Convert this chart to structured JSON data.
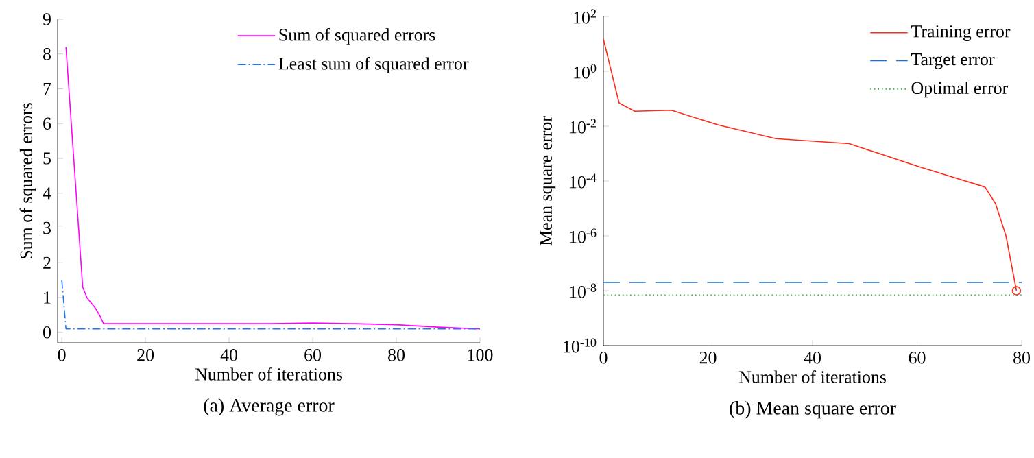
{
  "chart_data": [
    {
      "type": "line",
      "title": "(a) Average error",
      "xlabel": "Number of iterations",
      "ylabel": "Sum of squared errors",
      "xlim": [
        -1,
        100
      ],
      "ylim": [
        -0.3,
        9
      ],
      "xticks": [
        0,
        20,
        40,
        60,
        80,
        100
      ],
      "yticks": [
        0,
        1,
        2,
        3,
        4,
        5,
        6,
        7,
        8,
        9
      ],
      "legend": "top right",
      "grid": false,
      "series": [
        {
          "name": "Sum of squared errors",
          "color": "#ff00ff",
          "line_style": "solid",
          "x": [
            1,
            5,
            6,
            8,
            9,
            10,
            20,
            50,
            60,
            70,
            80,
            90,
            100
          ],
          "values": [
            8.2,
            1.3,
            1.0,
            0.7,
            0.5,
            0.25,
            0.25,
            0.25,
            0.27,
            0.25,
            0.22,
            0.15,
            0.1
          ]
        },
        {
          "name": "Least sum of squared error",
          "color": "#1a75ff",
          "line_style": "dashdot",
          "x": [
            0,
            1,
            100
          ],
          "values": [
            1.5,
            0.1,
            0.1
          ]
        }
      ]
    },
    {
      "type": "line",
      "title": "(b) Mean square error",
      "xlabel": "Number of iterations",
      "ylabel": "Mean square error",
      "log": "y",
      "xlim": [
        0,
        80
      ],
      "ylim": [
        1e-10,
        100
      ],
      "xticks": [
        0,
        20,
        40,
        60,
        80
      ],
      "yticks": [
        {
          "value": 1e-10,
          "label": "10$^{-10}$"
        },
        {
          "value": 1e-08,
          "label": "10$^{-8}$"
        },
        {
          "value": 1e-06,
          "label": "10$^{-6}$"
        },
        {
          "value": 0.0001,
          "label": "10$^{-4}$"
        },
        {
          "value": 0.01,
          "label": "10$^{-2}$"
        },
        {
          "value": 1,
          "label": "10$^{0}$"
        },
        {
          "value": 100,
          "label": "10$^{2}$"
        }
      ],
      "legend": "top right",
      "grid": false,
      "series": [
        {
          "name": "Training error",
          "color": "#ff2a1a",
          "line_style": "solid",
          "x": [
            0,
            3,
            6,
            13,
            22,
            33,
            47,
            60,
            73,
            75,
            77,
            79
          ],
          "values": [
            15,
            0.07,
            0.035,
            0.038,
            0.011,
            0.0035,
            0.0023,
            0.00035,
            6e-05,
            1.5e-05,
            1e-06,
            1e-08
          ]
        },
        {
          "name": "Target error",
          "color": "#1a6fd0",
          "line_style": "dashed",
          "x": [
            0,
            80
          ],
          "values": [
            2e-08,
            2e-08
          ]
        },
        {
          "name": "Optimal error",
          "color": "#2db84a",
          "line_style": "dotted",
          "x": [
            0,
            80
          ],
          "values": [
            7e-09,
            7e-09
          ]
        },
        {
          "type": "scatter",
          "color": "#ff2a1a",
          "marker": "circle",
          "x": [
            79
          ],
          "values": [
            1e-08
          ]
        }
      ]
    }
  ]
}
